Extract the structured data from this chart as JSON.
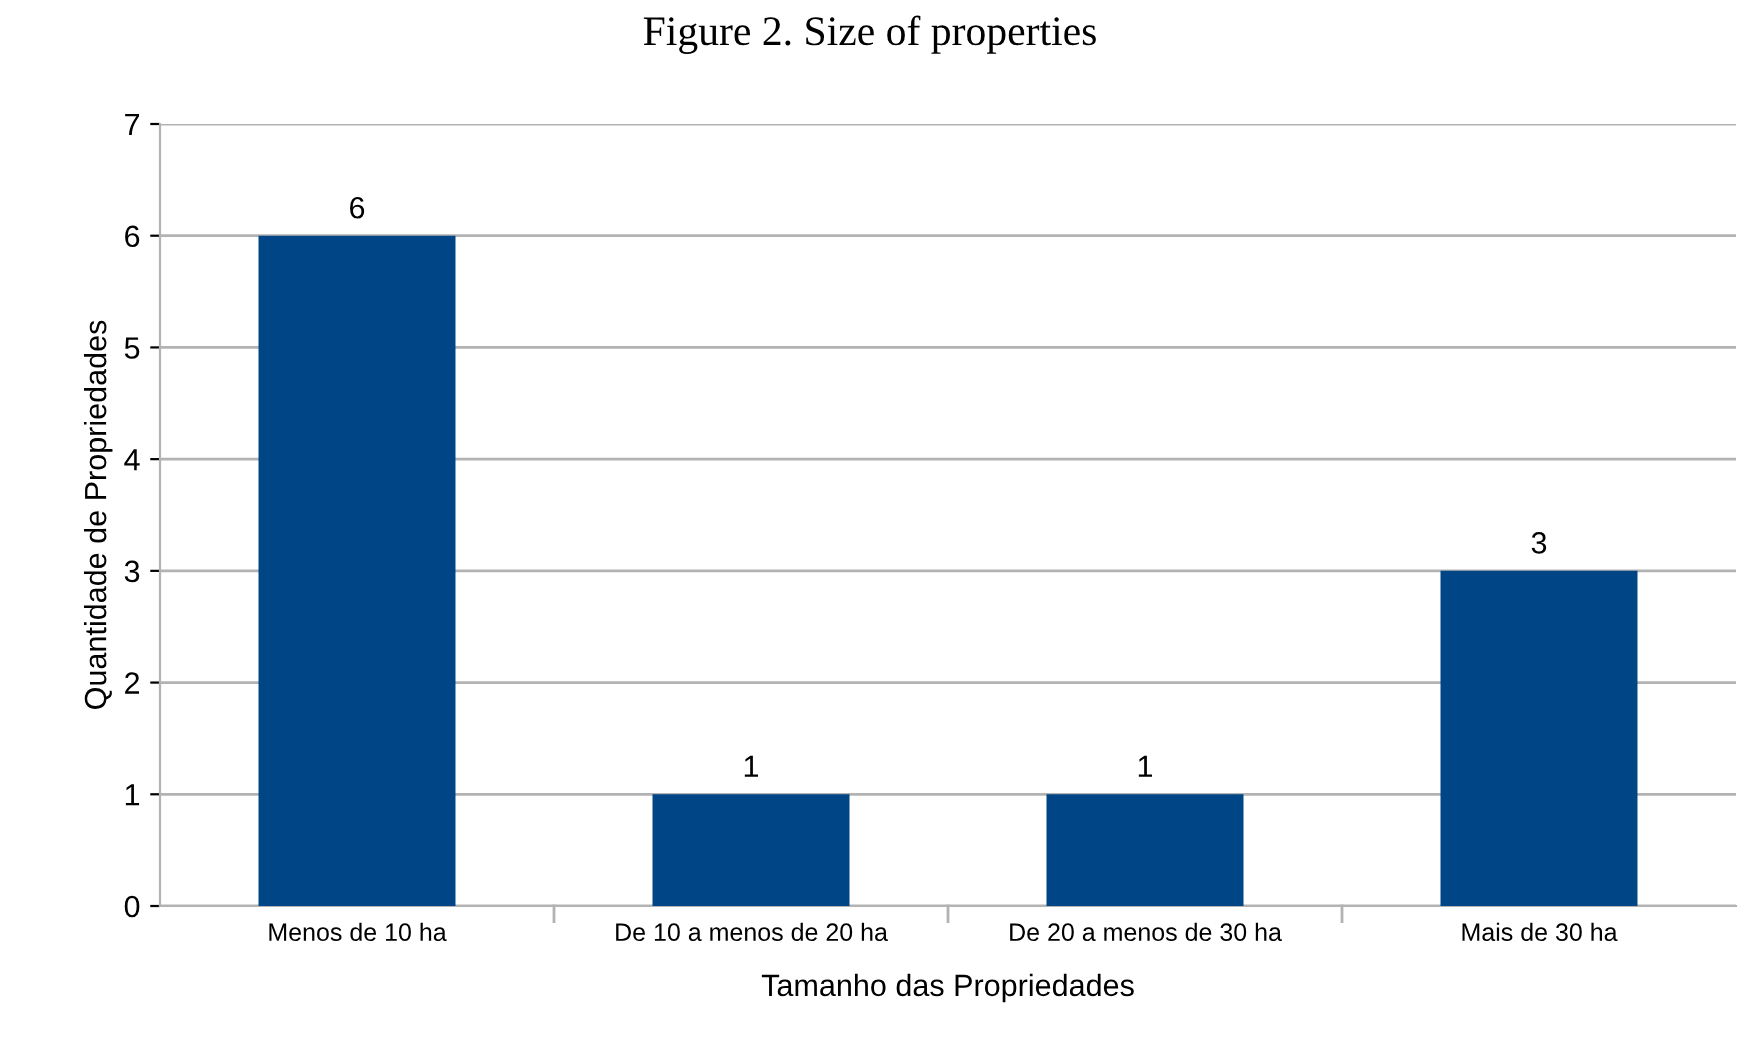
{
  "chart_data": {
    "type": "bar",
    "title": "Figure 2. Size of properties",
    "xlabel": "Tamanho das Propriedades",
    "ylabel": "Quantidade de Propriedades",
    "categories": [
      "Menos de 10 ha",
      "De 10 a menos de 20 ha",
      "De 20 a menos de 30 ha",
      "Mais de 30 ha"
    ],
    "values": [
      6,
      1,
      1,
      3
    ],
    "color": "#004586",
    "ylim": [
      0,
      7
    ],
    "yticks": [
      0,
      1,
      2,
      3,
      4,
      5,
      6,
      7
    ],
    "grid": "y",
    "data_labels": true,
    "legend": false
  }
}
